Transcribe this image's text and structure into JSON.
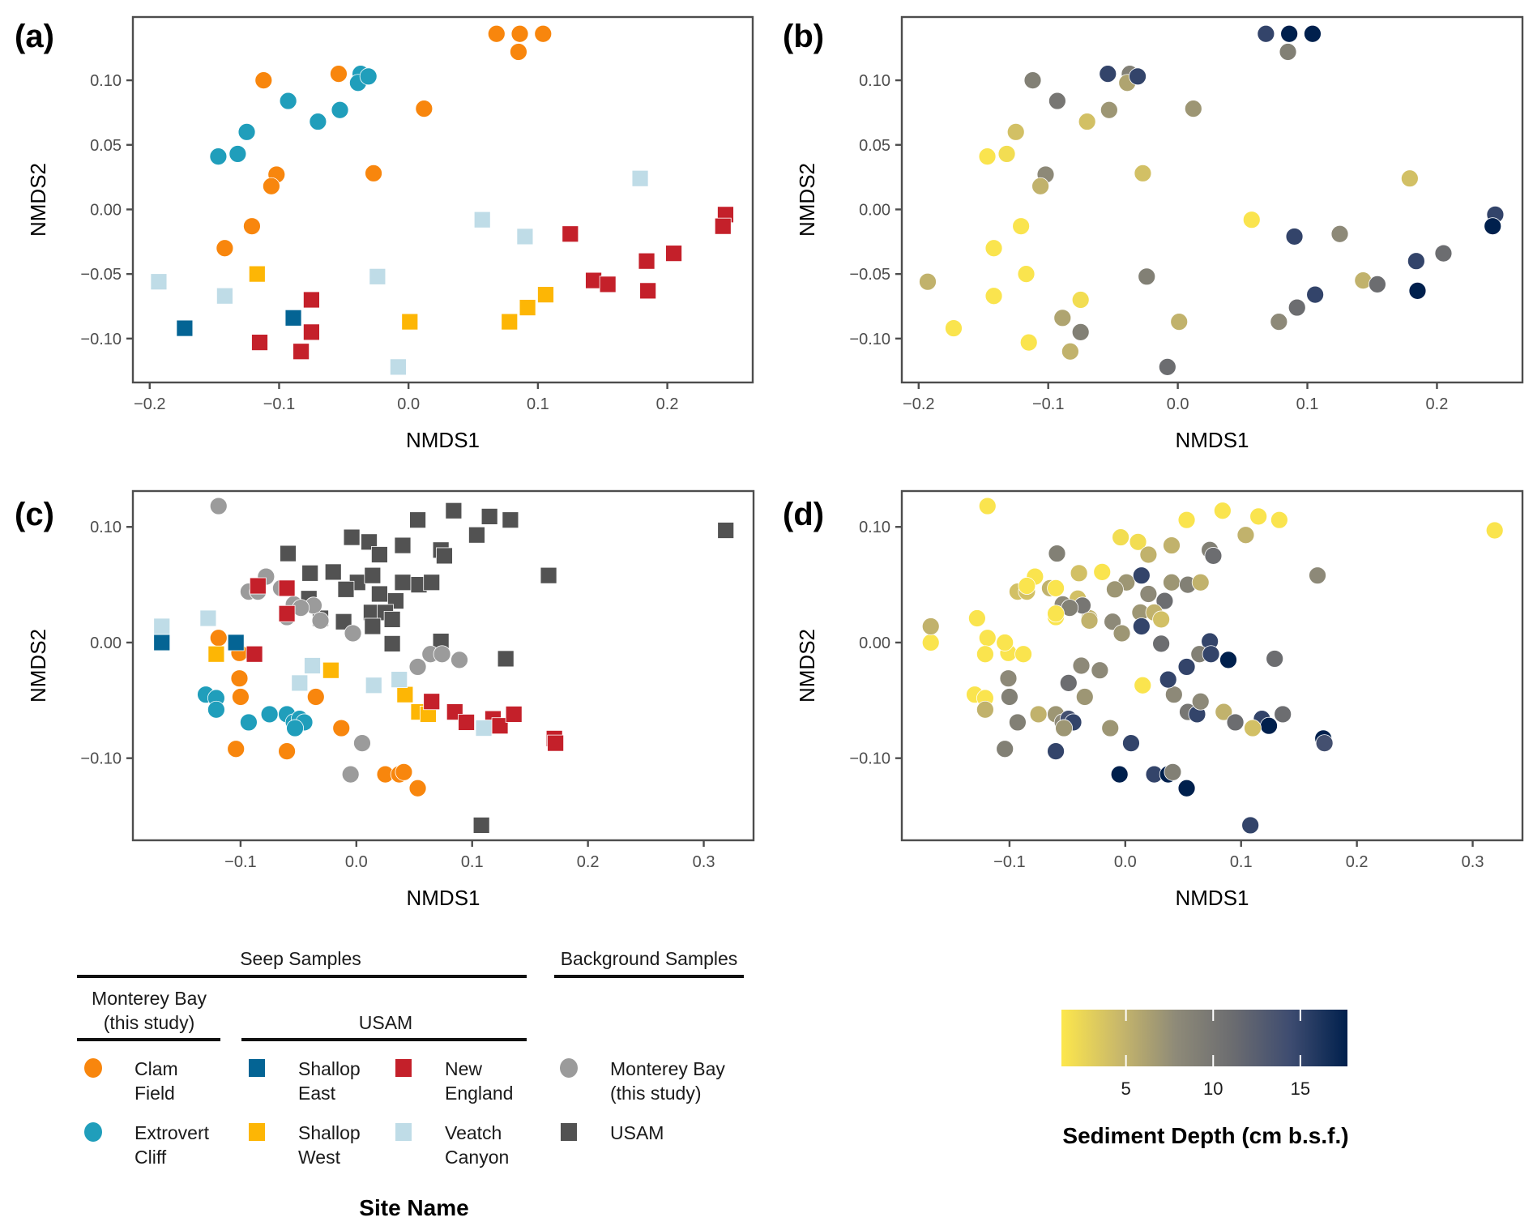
{
  "figure": {
    "panels": [
      "(a)",
      "(b)",
      "(c)",
      "(d)"
    ],
    "xlabel": "NMDS1",
    "ylabel": "NMDS2"
  },
  "legend": {
    "title": "Site Name",
    "groups": {
      "seep": "Seep Samples",
      "background": "Background Samples",
      "monterey_sub": [
        "Monterey Bay",
        "(this study)"
      ],
      "usam_sub": "USAM"
    },
    "entries": [
      {
        "key": "clam_field",
        "lines": [
          "Clam",
          "Field"
        ],
        "shape": "circle",
        "color": "#F8860D"
      },
      {
        "key": "extrovert_cliff",
        "lines": [
          "Extrovert",
          "Cliff"
        ],
        "shape": "circle",
        "color": "#209EBB"
      },
      {
        "key": "shallop_east",
        "lines": [
          "Shallop",
          "East"
        ],
        "shape": "square",
        "color": "#046494"
      },
      {
        "key": "shallop_west",
        "lines": [
          "Shallop",
          "West"
        ],
        "shape": "square",
        "color": "#FDB605"
      },
      {
        "key": "new_england",
        "lines": [
          "New",
          "England"
        ],
        "shape": "square",
        "color": "#C4202A"
      },
      {
        "key": "veatch_canyon",
        "lines": [
          "Veatch",
          "Canyon"
        ],
        "shape": "square",
        "color": "#BFDCE7"
      },
      {
        "key": "bg_monterey",
        "lines": [
          "Monterey Bay",
          "(this study)"
        ],
        "shape": "circle",
        "color": "#9B9B9B"
      },
      {
        "key": "bg_usam",
        "lines": [
          "USAM"
        ],
        "shape": "square",
        "color": "#525252"
      }
    ]
  },
  "colorbar": {
    "title": "Sediment Depth (cm b.s.f.)",
    "ticks": [
      5,
      10,
      15
    ],
    "range": [
      1.3,
      17.7
    ],
    "colors": [
      "#FDE74C",
      "#C9B86A",
      "#8E8A78",
      "#6B6C70",
      "#3E4C70",
      "#00204D"
    ]
  },
  "chart_data": [
    {
      "panel": "(a)",
      "type": "scatter",
      "xlabel": "NMDS1",
      "ylabel": "NMDS2",
      "xticks": [
        -0.2,
        -0.1,
        0.0,
        0.1,
        0.2
      ],
      "xtick_labels": [
        "−0.2",
        "−0.1",
        "0.0",
        "0.1",
        "0.2"
      ],
      "yticks": [
        -0.1,
        -0.05,
        0.0,
        0.05,
        0.1
      ],
      "ytick_labels": [
        "−0.10",
        "−0.05",
        "0.00",
        "0.05",
        "0.10"
      ],
      "xlim": [
        -0.213,
        0.266
      ],
      "ylim": [
        -0.134,
        0.149
      ],
      "grid": false,
      "color_by": "site",
      "series": [
        {
          "name": "Clam Field",
          "key": "clam_field",
          "points": [
            [
              0.068,
              0.136,
              15
            ],
            [
              0.086,
              0.136,
              18
            ],
            [
              0.104,
              0.136,
              18
            ],
            [
              0.085,
              0.122,
              9
            ],
            [
              -0.112,
              0.1,
              9
            ],
            [
              -0.054,
              0.105,
              15
            ],
            [
              0.012,
              0.078,
              7
            ],
            [
              -0.102,
              0.027,
              8
            ],
            [
              -0.106,
              0.018,
              5
            ],
            [
              -0.027,
              0.028,
              4
            ],
            [
              -0.121,
              -0.013,
              1.5
            ],
            [
              -0.142,
              -0.03,
              1.5
            ]
          ]
        },
        {
          "name": "Extrovert Cliff",
          "key": "extrovert_cliff",
          "points": [
            [
              -0.147,
              0.041,
              1.5
            ],
            [
              -0.132,
              0.043,
              2
            ],
            [
              -0.125,
              0.06,
              4
            ],
            [
              -0.093,
              0.084,
              10
            ],
            [
              -0.07,
              0.068,
              4
            ],
            [
              -0.053,
              0.077,
              7
            ],
            [
              -0.037,
              0.105,
              9
            ],
            [
              -0.039,
              0.098,
              6
            ],
            [
              -0.031,
              0.103,
              15
            ]
          ]
        },
        {
          "name": "Shallop East",
          "key": "shallop_east",
          "points": [
            [
              -0.173,
              -0.092,
              1.5
            ],
            [
              -0.089,
              -0.084,
              6
            ]
          ]
        },
        {
          "name": "Shallop West",
          "key": "shallop_west",
          "points": [
            [
              -0.117,
              -0.05,
              1.5
            ],
            [
              0.001,
              -0.087,
              5
            ],
            [
              0.078,
              -0.087,
              8
            ],
            [
              0.092,
              -0.076,
              11
            ],
            [
              0.106,
              -0.066,
              15
            ]
          ]
        },
        {
          "name": "New England",
          "key": "new_england",
          "points": [
            [
              -0.115,
              -0.103,
              1.5
            ],
            [
              -0.083,
              -0.11,
              5
            ],
            [
              -0.075,
              -0.095,
              9
            ],
            [
              -0.075,
              -0.07,
              2
            ],
            [
              0.125,
              -0.019,
              8
            ],
            [
              0.143,
              -0.055,
              5
            ],
            [
              0.154,
              -0.058,
              11
            ],
            [
              0.184,
              -0.04,
              15
            ],
            [
              0.185,
              -0.063,
              18
            ],
            [
              0.205,
              -0.034,
              11
            ],
            [
              0.245,
              -0.004,
              15
            ],
            [
              0.243,
              -0.013,
              18
            ]
          ]
        },
        {
          "name": "Veatch Canyon",
          "key": "veatch_canyon",
          "points": [
            [
              -0.193,
              -0.056,
              5
            ],
            [
              -0.142,
              -0.067,
              1.5
            ],
            [
              -0.024,
              -0.052,
              9
            ],
            [
              -0.008,
              -0.122,
              11
            ],
            [
              0.057,
              -0.008,
              1.5
            ],
            [
              0.09,
              -0.021,
              15
            ],
            [
              0.179,
              0.024,
              4
            ]
          ]
        }
      ]
    },
    {
      "panel": "(b)",
      "type": "scatter",
      "xlabel": "NMDS1",
      "ylabel": "NMDS2",
      "same_points_as": "(a)",
      "color_by": "Sediment Depth (cm b.s.f.)",
      "all_circles": true
    },
    {
      "panel": "(c)",
      "type": "scatter",
      "xlabel": "NMDS1",
      "ylabel": "NMDS2",
      "xticks": [
        -0.1,
        0.0,
        0.1,
        0.2,
        0.3
      ],
      "xtick_labels": [
        "−0.1",
        "0.0",
        "0.1",
        "0.2",
        "0.3"
      ],
      "yticks": [
        -0.1,
        0.0,
        0.1
      ],
      "ytick_labels": [
        "−0.10",
        "0.00",
        "0.10"
      ],
      "xlim": [
        -0.193,
        0.343
      ],
      "ylim": [
        -0.171,
        0.131
      ],
      "grid": false,
      "color_by": "site",
      "series": [
        {
          "name": "USAM (background)",
          "key": "bg_usam",
          "points": [
            [
              -0.059,
              0.077,
              9
            ],
            [
              -0.004,
              0.091,
              2
            ],
            [
              0.011,
              0.087,
              2
            ],
            [
              0.02,
              0.076,
              5
            ],
            [
              0.04,
              0.084,
              5
            ],
            [
              0.053,
              0.106,
              1.5
            ],
            [
              0.084,
              0.114,
              1.5
            ],
            [
              0.073,
              0.08,
              9
            ],
            [
              0.076,
              0.075,
              11
            ],
            [
              0.104,
              0.093,
              5
            ],
            [
              0.115,
              0.109,
              1.5
            ],
            [
              0.133,
              0.106,
              1.5
            ],
            [
              -0.04,
              0.06,
              4
            ],
            [
              -0.02,
              0.061,
              1.5
            ],
            [
              0.001,
              0.052,
              7
            ],
            [
              0.014,
              0.058,
              15
            ],
            [
              0.04,
              0.052,
              7
            ],
            [
              0.054,
              0.05,
              9
            ],
            [
              0.065,
              0.052,
              5
            ],
            [
              -0.041,
              0.038,
              4
            ],
            [
              -0.009,
              0.046,
              7
            ],
            [
              0.02,
              0.042,
              8
            ],
            [
              0.034,
              0.036,
              11
            ],
            [
              0.013,
              0.026,
              7
            ],
            [
              0.025,
              0.026,
              5
            ],
            [
              0.014,
              0.014,
              15
            ],
            [
              0.031,
              0.02,
              4
            ],
            [
              0.031,
              -0.001,
              11
            ],
            [
              0.073,
              0.001,
              15
            ],
            [
              0.129,
              -0.014,
              11
            ],
            [
              0.166,
              0.058,
              8
            ],
            [
              0.319,
              0.097,
              1.5
            ],
            [
              0.108,
              -0.158,
              15
            ],
            [
              -0.011,
              0.018,
              8
            ],
            [
              -0.031,
              0.021,
              5
            ]
          ]
        },
        {
          "name": "Monterey Bay (background)",
          "key": "bg_monterey",
          "points": [
            [
              -0.119,
              0.118,
              1.5
            ],
            [
              -0.093,
              0.044,
              4
            ],
            [
              -0.085,
              0.044,
              4
            ],
            [
              -0.078,
              0.057,
              1.5
            ],
            [
              -0.065,
              0.047,
              5
            ],
            [
              -0.054,
              0.033,
              8
            ],
            [
              -0.037,
              0.032,
              10
            ],
            [
              -0.048,
              0.03,
              9
            ],
            [
              -0.031,
              0.019,
              5
            ],
            [
              -0.003,
              0.008,
              7
            ],
            [
              -0.06,
              0.022,
              1.5
            ],
            [
              0.053,
              -0.021,
              15
            ],
            [
              0.064,
              -0.01,
              9
            ],
            [
              0.074,
              -0.01,
              15
            ],
            [
              0.089,
              -0.015,
              18
            ],
            [
              0.005,
              -0.087,
              15
            ],
            [
              -0.005,
              -0.114,
              18
            ]
          ]
        },
        {
          "name": "Clam Field",
          "key": "clam_field",
          "points": [
            [
              -0.119,
              0.004,
              1.5
            ],
            [
              -0.101,
              -0.009,
              1.5
            ],
            [
              -0.101,
              -0.031,
              8
            ],
            [
              -0.1,
              -0.047,
              9
            ],
            [
              -0.104,
              -0.092,
              9
            ],
            [
              -0.06,
              -0.094,
              15
            ],
            [
              -0.035,
              -0.047,
              7
            ],
            [
              -0.013,
              -0.074,
              7
            ],
            [
              0.025,
              -0.114,
              15
            ],
            [
              0.037,
              -0.114,
              18
            ],
            [
              0.041,
              -0.112,
              9
            ],
            [
              0.053,
              -0.126,
              18
            ]
          ]
        },
        {
          "name": "Extrovert Cliff",
          "key": "extrovert_cliff",
          "points": [
            [
              -0.13,
              -0.045,
              1.5
            ],
            [
              -0.121,
              -0.048,
              1.5
            ],
            [
              -0.121,
              -0.058,
              5
            ],
            [
              -0.093,
              -0.069,
              9
            ],
            [
              -0.075,
              -0.062,
              5
            ],
            [
              -0.06,
              -0.062,
              7
            ],
            [
              -0.054,
              -0.069,
              8
            ],
            [
              -0.049,
              -0.066,
              14
            ],
            [
              -0.045,
              -0.069,
              15
            ],
            [
              -0.053,
              -0.074,
              7
            ]
          ]
        },
        {
          "name": "Shallop East",
          "key": "shallop_east",
          "points": [
            [
              -0.168,
              0.0,
              1.5
            ],
            [
              -0.104,
              0.0,
              1.5
            ]
          ]
        },
        {
          "name": "Shallop West",
          "key": "shallop_west",
          "points": [
            [
              -0.121,
              -0.01,
              1.5
            ],
            [
              -0.022,
              -0.024,
              8
            ],
            [
              0.042,
              -0.045,
              8
            ],
            [
              0.054,
              -0.06,
              10
            ],
            [
              0.062,
              -0.062,
              15
            ]
          ]
        },
        {
          "name": "New England",
          "key": "new_england",
          "points": [
            [
              -0.085,
              0.049,
              1.5
            ],
            [
              -0.06,
              0.047,
              1.5
            ],
            [
              -0.06,
              0.025,
              1.5
            ],
            [
              -0.088,
              -0.01,
              1.5
            ],
            [
              0.065,
              -0.051,
              8
            ],
            [
              0.085,
              -0.06,
              5
            ],
            [
              0.095,
              -0.069,
              11
            ],
            [
              0.118,
              -0.066,
              15
            ],
            [
              0.124,
              -0.072,
              18
            ],
            [
              0.136,
              -0.062,
              11
            ],
            [
              0.171,
              -0.083,
              18
            ],
            [
              0.172,
              -0.087,
              14
            ]
          ]
        },
        {
          "name": "Veatch Canyon",
          "key": "veatch_canyon",
          "points": [
            [
              -0.168,
              0.014,
              5
            ],
            [
              -0.128,
              0.021,
              1.5
            ],
            [
              -0.049,
              -0.035,
              11
            ],
            [
              -0.038,
              -0.02,
              8
            ],
            [
              0.015,
              -0.037,
              1.5
            ],
            [
              0.037,
              -0.032,
              15
            ],
            [
              0.11,
              -0.074,
              4
            ]
          ]
        }
      ]
    },
    {
      "panel": "(d)",
      "type": "scatter",
      "xlabel": "NMDS1",
      "ylabel": "NMDS2",
      "same_points_as": "(c)",
      "color_by": "Sediment Depth (cm b.s.f.)",
      "all_circles": true
    }
  ]
}
